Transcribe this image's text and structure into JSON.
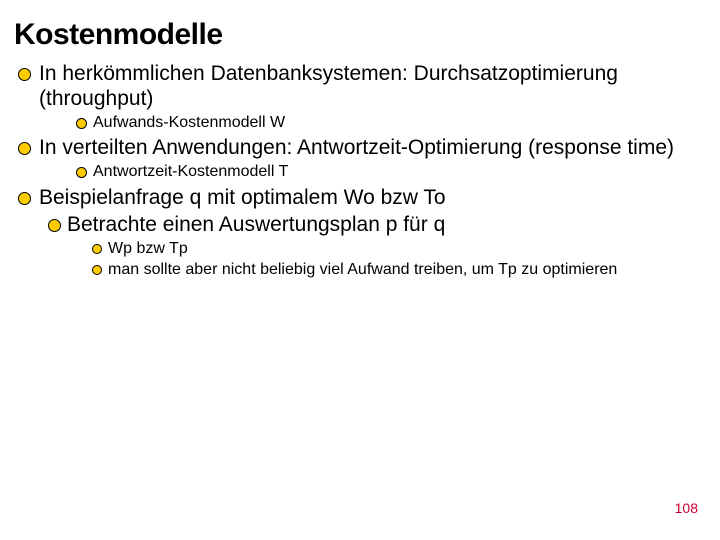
{
  "title": {
    "text": "Kostenmodelle",
    "fontSize": 30,
    "color": "#000000",
    "fontWeight": 900
  },
  "bullets": {
    "level1": {
      "size": 13,
      "fill": "#ffcc00",
      "border": "#000000",
      "borderWidth": 1.5,
      "leftIndent": 4,
      "textGap": 8,
      "fontSize": 21,
      "topMargin": 4
    },
    "level2": {
      "size": 11,
      "fill": "#ffcc00",
      "border": "#000000",
      "borderWidth": 1.2,
      "leftIndent": 62,
      "textGap": 6,
      "fontSize": 16,
      "topMargin": 2
    },
    "level3": {
      "size": 10,
      "fill": "#ffcc00",
      "border": "#000000",
      "borderWidth": 1.2,
      "leftIndent": 78,
      "textGap": 6,
      "fontSize": 16,
      "topMargin": 2
    }
  },
  "items": [
    {
      "level": 1,
      "text": "In herkömmlichen Datenbanksystemen: Durchsatzoptimierung (throughput)"
    },
    {
      "level": 2,
      "text": "Aufwands-Kostenmodell W"
    },
    {
      "level": 1,
      "text": "In verteilten Anwendungen: Antwortzeit-Optimierung (response time)"
    },
    {
      "level": 2,
      "text": "Antwortzeit-Kostenmodell T"
    },
    {
      "level": 1,
      "text": "Beispielanfrage q mit optimalem Wo bzw To"
    },
    {
      "level": 2,
      "text": "Betrachte einen Auswertungsplan p für q",
      "overrideFontSize": 21,
      "overrideLeftIndent": 34,
      "overrideBulletSize": 13
    },
    {
      "level": 3,
      "text": "Wp bzw Tp"
    },
    {
      "level": 3,
      "text": "man sollte aber nicht beliebig viel Aufwand treiben, um Tp zu optimieren"
    }
  ],
  "pageNumber": {
    "text": "108",
    "color": "#cc0033",
    "fontSize": 14
  },
  "background": "#ffffff"
}
